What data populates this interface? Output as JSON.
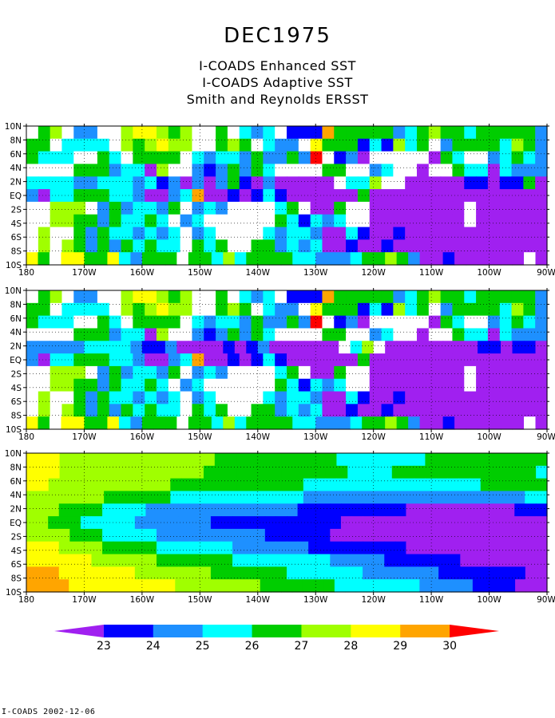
{
  "title": "DEC1975",
  "subtitles": [
    "I-COADS Enhanced SST",
    "I-COADS Adaptive SST",
    "Smith and Reynolds ERSST"
  ],
  "footer": "I-COADS 2002-12-06",
  "colors": {
    "below_23": "#a020f0",
    "23_24": "#0000ff",
    "24_25": "#1e90ff",
    "25_26": "#00ffff",
    "26_27": "#00cd00",
    "27_28": "#a0ff00",
    "28_29": "#ffff00",
    "29_30": "#ffa500",
    "above_30": "#ff0000",
    "missing": "#ffffff"
  },
  "chart_data": [
    {
      "type": "heatmap",
      "title": "I-COADS Enhanced SST",
      "x_ticks": [
        "180",
        "170W",
        "160W",
        "150W",
        "140W",
        "130W",
        "120W",
        "110W",
        "100W",
        "90W"
      ],
      "y_ticks": [
        "10N",
        "8N",
        "6N",
        "4N",
        "2N",
        "EQ",
        "2S",
        "4S",
        "6S",
        "8S",
        "10S"
      ],
      "xlim": [
        -180,
        -90
      ],
      "ylim": [
        -10,
        10
      ],
      "grid": true,
      "cell_size_deg": [
        2,
        2
      ],
      "class_key": "P purple <23, B blue 23-24, L light-blue 24-25, C cyan 25-26, G green 26-27, Y lime 27-28, W yellow 28-29, O orange 29-30, R red >30, . missing; rows north to south, columns 180 to 90W",
      "rows": [
        ".GY.LL..YWWYGY..G.CLC.BBBOGGGGGLCGYGGCGGGGGL",
        "GG.CCCC.YGYWYY..GYG.CLL.WGGGBCBYCG.LGGGGCYGL",
        "GCCC..GC.GGGG.CLCCLGLLGLR.BLP.....PGC..LCGCL",
        "....GGGLCCPY..LBLGLGC....GG..LC..P..GCCPCLLL",
        "CCCCLLCCCLCBLPLPLGBPLPPPPP.CCY..PPPPPBBPBBGP",
        "LPCCGGGCCLPPLCOPPBPBCBPPPPPPGPPPPPPPPPPPPPPP",
        "..YYY.LGLCCLG.LCL....CG.PPG..PPPPPPPP.PPPPPP",
        "..YYGGLGCCGC.LC......GCBCLC..PPPPPPPP.PPPPPP",
        ".Y..GLGCCLCLC.LC....CLCCLPPCBPPBPPPPPPPPPPPP",
        ".Y.YGLGLGCGCC.GCG..GGLCLCPPBPPBPPPPPPPPPPPPP",
        "WG.WWGGWCLGGG.GGCYCGGGGCCLLLCGGYGLPPBPPPPPP.P"
      ]
    },
    {
      "type": "heatmap",
      "title": "I-COADS Adaptive SST",
      "x_ticks": [
        "180",
        "170W",
        "160W",
        "150W",
        "140W",
        "130W",
        "120W",
        "110W",
        "100W",
        "90W"
      ],
      "y_ticks": [
        "10N",
        "8N",
        "6N",
        "4N",
        "2N",
        "EQ",
        "2S",
        "4S",
        "6S",
        "8S",
        "10S"
      ],
      "xlim": [
        -180,
        -90
      ],
      "ylim": [
        -10,
        10
      ],
      "grid": true,
      "cell_size_deg": [
        2,
        2
      ],
      "class_key": "P purple <23, B blue 23-24, L light-blue 24-25, C cyan 25-26, G green 26-27, Y lime 27-28, W yellow 28-29, O orange 29-30, R red >30, . missing; rows north to south, columns 180 to 90W",
      "rows": [
        ".GY.LL..YWWYGY..G.CLC.BBBOGGGGGLCGYGGCGGGGGL",
        "GG.CCCC.YGYWYY..GYG.CLL.WGGGBCBYCG.LGGGGCYGL",
        "GCCC..GC.GGGG.CLCCLGLLGLR.BLP.....PGC..LCGCL",
        "....GGGLCCPY..LBLGLGC....GG..LC..P..GCCPCLLL",
        "LLLLLCCCCLBBLPPPPBPBLPPPPPP.CY.PPPPPPPPBBPBBP",
        "LPCCGGGCCLPPLCOPPBPBCBPPPPPPGPPPPPPPPPPPPPPP",
        "..YYY.LGLCCLG.LCL....CG.PPG..PPPPPPPP.PPPPPP",
        "..YYGGLGCCGC.LC......GCBCLC..PPPPPPPP.PPPPPP",
        ".Y..GLGCCLCLC.LC....CLCCLPPCBPPBPPPPPPPPPPPP",
        ".Y.YGLGLGCGCC.GCG..GGLCLCPPBPPBPPPPPPPPPPPPP",
        "WG.WWGGWCLGGG.GGCYCGGGGCCLLLCGGYGLPPBPPPPPP.P"
      ]
    },
    {
      "type": "heatmap",
      "title": "Smith and Reynolds ERSST",
      "x_ticks": [
        "180",
        "170W",
        "160W",
        "150W",
        "140W",
        "130W",
        "120W",
        "110W",
        "100W",
        "90W"
      ],
      "y_ticks": [
        "10N",
        "8N",
        "6N",
        "4N",
        "2N",
        "EQ",
        "2S",
        "4S",
        "6S",
        "8S",
        "10S"
      ],
      "xlim": [
        -180,
        -90
      ],
      "ylim": [
        -10,
        10
      ],
      "grid": true,
      "cell_size_deg": [
        2,
        2
      ],
      "class_key": "P purple <23, B blue 23-24, L light-blue 24-25, C cyan 25-26, G green 26-27, Y lime 27-28, W yellow 28-29, O orange 29-30, R red >30, . missing; rows north to south, columns 180 to 90W",
      "rows": [
        "WWWYYYYYYYYYYYYYYGGGGGGGGGGGCCCCCCCCGGGGGGGGGGG",
        "WWWYYYYYYYYYYYYYGGGGGGGGGGGGGCCCCGGGGGGGGGGGGGC",
        "WWYYYYYYYYYYYGGGGGGGGGGGGCCCCCCCCCCCCCCCCGGGGGG",
        "YYYYYYYGGGGGGCCCCCCCCCCCCLLLLLLLLLLLLLLLLLLLLCC",
        "YYYGGGGCCCCLLLLLLLLLLLLLLBBBBBBBBBBPPPPPPPPPPBBB",
        "YYGGGCCCCCLLLLLLLBBBBBBBBBBBBPPPPPPPPPPPPPPPPPPP",
        "YYYYGGGCCCCCLLLLLLLLLLBBBBBBPPPPPPPPPPPPPPPPPPPP",
        "WWWYYYYGGGGGCCCCCCCLLLLLLLBBBBBBBBBPPPPPPPPPPPPP",
        "WWWWWWYYYYYYGGGGGGGCCCCCCCCCLLLLLBBBBBBBPPPPPPPP",
        "OOOWWWWWWWYYYYYYYGGGGGGGCCCCCCCLLLLLLLBBBBBBBBPP",
        "OOOOWWWWWWWWWWYYYYYYYYGGGGGGGCCCCCCCCLLLLLBBBBPPP"
      ]
    }
  ],
  "colorbar": {
    "labels": [
      "23",
      "24",
      "25",
      "26",
      "27",
      "28",
      "29",
      "30"
    ],
    "classes": [
      "P",
      "B",
      "L",
      "C",
      "G",
      "Y",
      "W",
      "O",
      "R"
    ]
  }
}
